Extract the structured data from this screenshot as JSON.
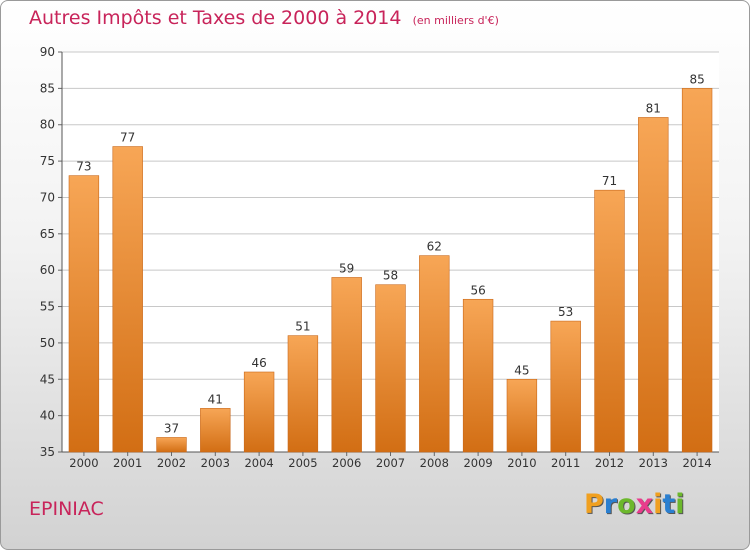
{
  "header": {
    "title": "Autres Impôts et Taxes de 2000 à 2014",
    "unit": "(en milliers d'€)"
  },
  "footer": {
    "commune": "EPINIAC",
    "brand": "Proxiti",
    "brand_colors": [
      "#f0a020",
      "#2a7fd0",
      "#6cb82c",
      "#e83c8c",
      "#f0a020",
      "#2a7fd0",
      "#6cb82c"
    ]
  },
  "colors": {
    "title": "#c8245a",
    "bar_top": "#f7a656",
    "bar_bottom": "#d26e14",
    "grid": "#c8c8c8",
    "axis_text": "#333333"
  },
  "chart_data": {
    "type": "bar",
    "categories": [
      "2000",
      "2001",
      "2002",
      "2003",
      "2004",
      "2005",
      "2006",
      "2007",
      "2008",
      "2009",
      "2010",
      "2011",
      "2012",
      "2013",
      "2014"
    ],
    "values": [
      73,
      77,
      37,
      41,
      46,
      51,
      59,
      58,
      62,
      56,
      45,
      53,
      71,
      81,
      85
    ],
    "ylim": [
      35,
      90
    ],
    "yticks": [
      35,
      40,
      45,
      50,
      55,
      60,
      65,
      70,
      75,
      80,
      85,
      90
    ],
    "grid": true,
    "show_value_labels": true
  }
}
